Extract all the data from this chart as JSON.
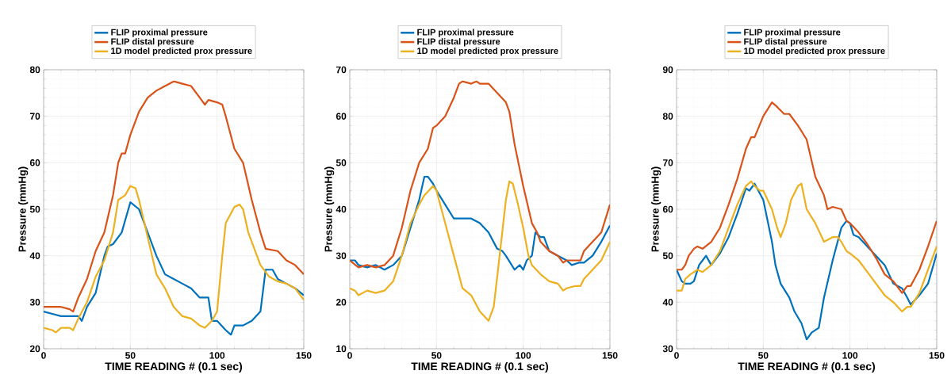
{
  "chart_data": [
    {
      "type": "line",
      "xlabel": "TIME READING # (0.1 sec)",
      "ylabel": "Pressure (mmHg)",
      "xlim": [
        0,
        150
      ],
      "ylim": [
        20,
        80
      ],
      "xticks": [
        0,
        50,
        100,
        150
      ],
      "yticks": [
        20,
        30,
        40,
        50,
        60,
        70,
        80
      ],
      "grid": true,
      "legend": "top",
      "series": [
        {
          "name": "FLIP proximal pressure",
          "color": "#0072bd",
          "x": [
            0,
            5,
            10,
            15,
            20,
            22,
            25,
            30,
            35,
            37,
            40,
            45,
            50,
            55,
            60,
            65,
            70,
            75,
            80,
            85,
            90,
            95,
            97,
            100,
            105,
            108,
            110,
            115,
            120,
            125,
            127,
            128,
            132,
            135,
            140,
            145,
            150
          ],
          "values": [
            28,
            27.5,
            27,
            27,
            27,
            26,
            29,
            32,
            40,
            42,
            42.5,
            45,
            51.5,
            50,
            45,
            40,
            36,
            35,
            34,
            33,
            31,
            31,
            26,
            26,
            24,
            23,
            25,
            25,
            26,
            28,
            34,
            37,
            37,
            35,
            34,
            33,
            31.5
          ]
        },
        {
          "name": "FLIP distal pressure",
          "color": "#d95319",
          "x": [
            0,
            5,
            10,
            15,
            17,
            20,
            25,
            30,
            35,
            40,
            43,
            45,
            47,
            50,
            55,
            60,
            65,
            70,
            75,
            80,
            85,
            90,
            93,
            95,
            100,
            103,
            105,
            110,
            115,
            120,
            125,
            128,
            135,
            140,
            145,
            150
          ],
          "values": [
            29,
            29,
            29,
            28.5,
            28,
            31,
            35,
            41,
            45,
            53,
            60,
            62,
            62,
            66,
            71,
            74,
            75.5,
            76.5,
            77.5,
            77,
            76.5,
            74,
            72.5,
            73.5,
            73,
            72.5,
            70,
            63,
            60,
            52,
            45,
            41.5,
            41,
            39,
            38,
            36
          ]
        },
        {
          "name": "1D model predicted prox pressure",
          "color": "#edb120",
          "x": [
            0,
            5,
            7,
            10,
            15,
            17,
            20,
            25,
            30,
            35,
            40,
            43,
            47,
            50,
            53,
            55,
            60,
            65,
            70,
            75,
            80,
            85,
            90,
            93,
            97,
            100,
            103,
            105,
            110,
            113,
            115,
            118,
            122,
            125,
            130,
            135,
            140,
            145,
            150
          ],
          "values": [
            24.5,
            24,
            23.5,
            24.5,
            24.5,
            24,
            26.5,
            30,
            35.5,
            39,
            45,
            52,
            53,
            55,
            54.5,
            52,
            44,
            36,
            33,
            29,
            27,
            26.5,
            25,
            24.5,
            26,
            28,
            40,
            47,
            50.5,
            51,
            50,
            45,
            41,
            38,
            35.5,
            34.5,
            34,
            33,
            30.5
          ]
        }
      ]
    },
    {
      "type": "line",
      "xlabel": "TIME READING # (0.1 sec)",
      "ylabel": "Pressure (mmHg)",
      "xlim": [
        0,
        150
      ],
      "ylim": [
        10,
        70
      ],
      "xticks": [
        0,
        50,
        100,
        150
      ],
      "yticks": [
        10,
        20,
        30,
        40,
        50,
        60,
        70
      ],
      "grid": true,
      "legend": "top",
      "series": [
        {
          "name": "FLIP proximal pressure",
          "color": "#0072bd",
          "x": [
            0,
            3,
            5,
            10,
            15,
            20,
            25,
            30,
            35,
            40,
            43,
            45,
            48,
            50,
            55,
            60,
            65,
            70,
            75,
            80,
            85,
            88,
            90,
            95,
            98,
            100,
            102,
            105,
            107,
            110,
            112,
            115,
            120,
            125,
            128,
            132,
            135,
            140,
            145,
            150
          ],
          "values": [
            29,
            29,
            28,
            27.5,
            28,
            27,
            28,
            30,
            36,
            42,
            47,
            47,
            45.5,
            44,
            41,
            38,
            38,
            38,
            37,
            35,
            31.5,
            31,
            30,
            27,
            28,
            27,
            29,
            30,
            35,
            34,
            34,
            31,
            30,
            29,
            28,
            28.5,
            28.5,
            30,
            33,
            36.5
          ]
        },
        {
          "name": "FLIP distal pressure",
          "color": "#d95319",
          "x": [
            0,
            5,
            10,
            15,
            20,
            25,
            30,
            35,
            40,
            45,
            48,
            50,
            55,
            60,
            63,
            65,
            70,
            73,
            75,
            80,
            85,
            90,
            92,
            95,
            100,
            105,
            108,
            110,
            115,
            120,
            123,
            125,
            130,
            133,
            135,
            140,
            145,
            150
          ],
          "values": [
            29,
            27.5,
            28,
            27.5,
            28,
            30,
            36,
            44,
            50,
            53,
            57.5,
            58,
            60,
            64,
            67,
            67.5,
            67,
            67.5,
            67,
            67,
            65,
            63,
            61,
            54,
            45,
            37,
            35,
            33,
            31,
            30,
            28.5,
            29,
            29,
            29,
            31,
            33,
            35,
            41
          ]
        },
        {
          "name": "1D model predicted prox pressure",
          "color": "#edb120",
          "x": [
            0,
            3,
            5,
            10,
            15,
            20,
            25,
            30,
            35,
            40,
            43,
            48,
            50,
            55,
            60,
            65,
            70,
            75,
            80,
            83,
            87,
            90,
            92,
            94,
            97,
            100,
            103,
            105,
            110,
            115,
            120,
            123,
            125,
            130,
            133,
            135,
            140,
            145,
            150
          ],
          "values": [
            23,
            22.5,
            21.5,
            22.5,
            22,
            22.5,
            24.5,
            30,
            37,
            41,
            43,
            45,
            44,
            37,
            30,
            23,
            21.5,
            18,
            16,
            19,
            32,
            42,
            46,
            45.5,
            41,
            36,
            30,
            28,
            26,
            24.5,
            24,
            22.5,
            23,
            23.5,
            23.5,
            25,
            27,
            29,
            33
          ]
        }
      ]
    },
    {
      "type": "line",
      "xlabel": "TIME READING # (0.1 sec)",
      "ylabel": "Pressure (mmHg)",
      "xlim": [
        0,
        150
      ],
      "ylim": [
        30,
        90
      ],
      "xticks": [
        0,
        50,
        100,
        150
      ],
      "yticks": [
        30,
        40,
        50,
        60,
        70,
        80,
        90
      ],
      "grid": true,
      "legend": "top",
      "series": [
        {
          "name": "FLIP proximal pressure",
          "color": "#0072bd",
          "x": [
            0,
            3,
            5,
            8,
            10,
            13,
            15,
            17,
            20,
            25,
            30,
            35,
            40,
            42,
            45,
            50,
            55,
            57,
            60,
            65,
            68,
            72,
            75,
            78,
            80,
            82,
            85,
            90,
            95,
            98,
            100,
            102,
            105,
            110,
            115,
            120,
            125,
            130,
            133,
            135,
            140,
            145,
            150
          ],
          "values": [
            47,
            44.5,
            44,
            44,
            44.5,
            48,
            49,
            50,
            48,
            50.5,
            54,
            59,
            64.5,
            64,
            65.5,
            62,
            53,
            48,
            44,
            41,
            38,
            35.5,
            32,
            33.5,
            34,
            34.5,
            41,
            49,
            56,
            57.5,
            57,
            54.5,
            54,
            52,
            50,
            48,
            44,
            43,
            41,
            39.5,
            41.5,
            44,
            50.5
          ]
        },
        {
          "name": "FLIP distal pressure",
          "color": "#d95319",
          "x": [
            0,
            3,
            5,
            7,
            10,
            12,
            15,
            20,
            25,
            30,
            35,
            40,
            43,
            45,
            50,
            55,
            58,
            62,
            65,
            70,
            75,
            80,
            85,
            87,
            90,
            95,
            98,
            100,
            105,
            110,
            115,
            120,
            125,
            130,
            133,
            135,
            140,
            145,
            150
          ],
          "values": [
            47,
            47,
            48,
            50,
            51.5,
            52,
            51.5,
            53,
            56,
            61,
            66.5,
            73,
            75.5,
            75.5,
            80,
            83,
            82,
            80.5,
            80.5,
            78,
            75,
            67,
            63,
            60,
            60.5,
            60,
            57.5,
            57,
            55,
            52.5,
            49.5,
            46,
            44.5,
            42,
            43.5,
            43.5,
            47,
            52,
            57.5
          ]
        },
        {
          "name": "1D model predicted prox pressure",
          "color": "#edb120",
          "x": [
            0,
            3,
            5,
            8,
            12,
            15,
            20,
            25,
            30,
            35,
            40,
            43,
            45,
            48,
            50,
            55,
            58,
            60,
            63,
            66,
            70,
            72,
            75,
            80,
            85,
            90,
            93,
            95,
            98,
            100,
            105,
            110,
            115,
            120,
            125,
            130,
            133,
            135,
            140,
            145,
            150
          ],
          "values": [
            42.5,
            42.5,
            45,
            46,
            47,
            46.5,
            48,
            51,
            56,
            61,
            65,
            66,
            65,
            64,
            64,
            60,
            56,
            54,
            57,
            62,
            65,
            65.5,
            60,
            57,
            53,
            54,
            54,
            53,
            51,
            50.5,
            49,
            46.5,
            44,
            41.5,
            40,
            38,
            39,
            39,
            42,
            47,
            52
          ]
        }
      ]
    }
  ]
}
